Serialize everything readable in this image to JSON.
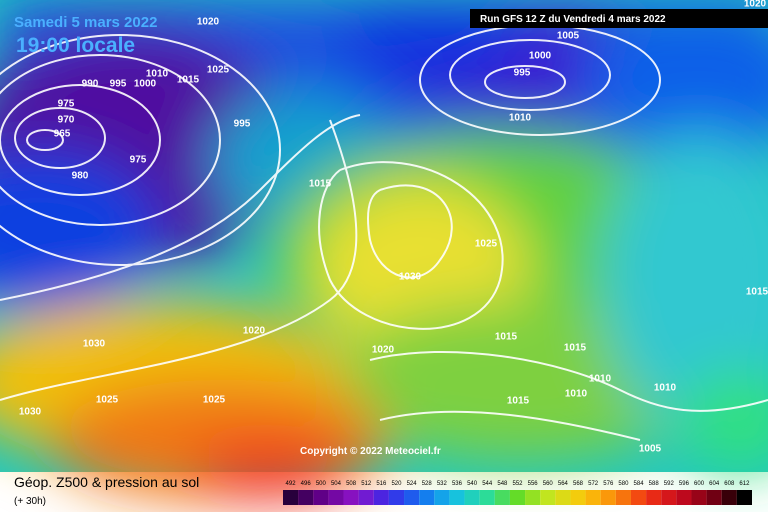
{
  "header": {
    "date": "Samedi 5 mars 2022",
    "time": "19:00 locale",
    "run": "Run GFS 12 Z du Vendredi 4 mars 2022"
  },
  "isobar_labels": [
    "1020",
    "1025",
    "990",
    "995",
    "1000",
    "1010",
    "1015",
    "975",
    "970",
    "965",
    "980",
    "975",
    "995",
    "1015",
    "1000",
    "995",
    "1005",
    "1010",
    "1020",
    "1025",
    "1030",
    "1020",
    "1030",
    "1020",
    "1015",
    "1015",
    "1010",
    "1010",
    "1010",
    "1015",
    "1005",
    "1025",
    "1025",
    "1030",
    "1015"
  ],
  "copyright": "Copyright © 2022 Meteociel.fr",
  "footer": {
    "title": "Géop. Z500 & pression au sol",
    "lead": "(+ 30h)"
  },
  "scale": [
    492,
    496,
    500,
    504,
    508,
    512,
    516,
    520,
    524,
    528,
    532,
    536,
    540,
    544,
    548,
    552,
    556,
    560,
    564,
    568,
    572,
    576,
    580,
    584,
    588,
    592,
    596,
    600,
    604,
    608,
    612
  ]
}
